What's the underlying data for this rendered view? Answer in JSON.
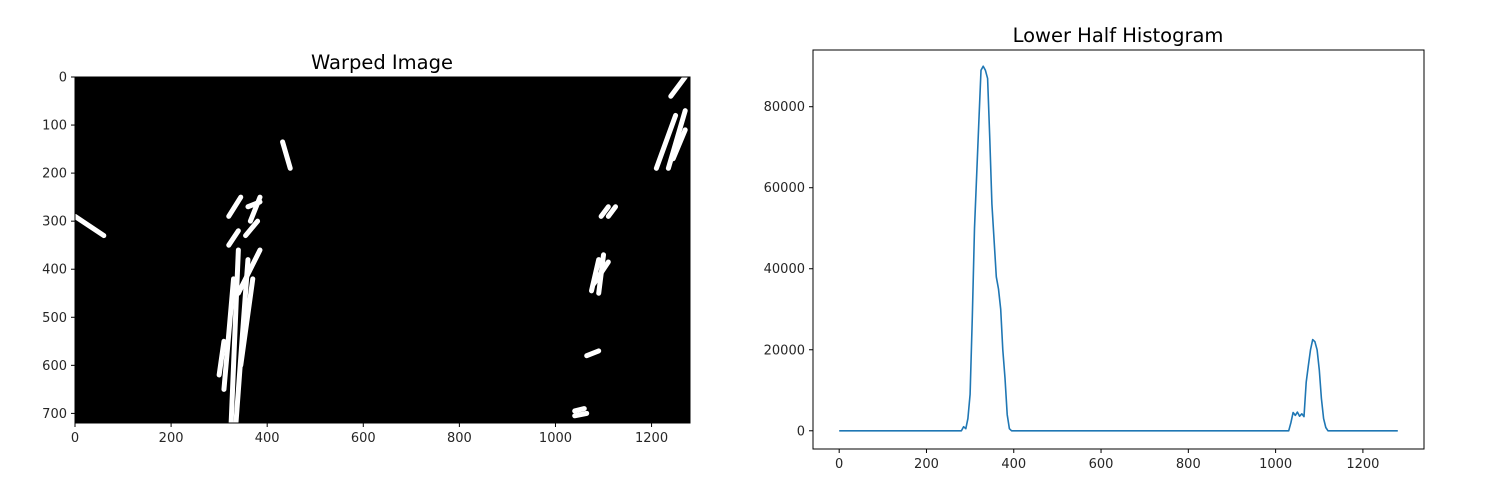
{
  "chart_data": [
    {
      "type": "image",
      "title": "Warped Image",
      "xlim": [
        0,
        1280
      ],
      "ylim": [
        720,
        0
      ],
      "xticks": [
        0,
        200,
        400,
        600,
        800,
        1000,
        1200
      ],
      "yticks": [
        0,
        100,
        200,
        300,
        400,
        500,
        600,
        700
      ],
      "colormap": "binary (white lane pixels on black)",
      "bright_regions": [
        {
          "kind": "line",
          "from": [
            0,
            290
          ],
          "to": [
            60,
            330
          ]
        },
        {
          "kind": "line",
          "from": [
            432,
            135
          ],
          "to": [
            448,
            190
          ]
        },
        {
          "kind": "line",
          "from": [
            1210,
            190
          ],
          "to": [
            1250,
            80
          ]
        },
        {
          "kind": "line",
          "from": [
            1235,
            190
          ],
          "to": [
            1270,
            70
          ]
        },
        {
          "kind": "line",
          "from": [
            1245,
            170
          ],
          "to": [
            1270,
            110
          ]
        },
        {
          "kind": "line",
          "from": [
            1240,
            40
          ],
          "to": [
            1270,
            0
          ]
        },
        {
          "kind": "line",
          "from": [
            1095,
            290
          ],
          "to": [
            1110,
            270
          ]
        },
        {
          "kind": "line",
          "from": [
            1110,
            290
          ],
          "to": [
            1125,
            270
          ]
        },
        {
          "kind": "line",
          "from": [
            325,
            720
          ],
          "to": [
            340,
            360
          ]
        },
        {
          "kind": "line",
          "from": [
            335,
            720
          ],
          "to": [
            360,
            380
          ]
        },
        {
          "kind": "line",
          "from": [
            310,
            650
          ],
          "to": [
            330,
            420
          ]
        },
        {
          "kind": "line",
          "from": [
            345,
            600
          ],
          "to": [
            370,
            420
          ]
        },
        {
          "kind": "line",
          "from": [
            340,
            450
          ],
          "to": [
            385,
            360
          ]
        },
        {
          "kind": "line",
          "from": [
            300,
            620
          ],
          "to": [
            310,
            550
          ]
        },
        {
          "kind": "line",
          "from": [
            320,
            350
          ],
          "to": [
            340,
            320
          ]
        },
        {
          "kind": "line",
          "from": [
            320,
            290
          ],
          "to": [
            345,
            250
          ]
        },
        {
          "kind": "line",
          "from": [
            355,
            330
          ],
          "to": [
            380,
            300
          ]
        },
        {
          "kind": "line",
          "from": [
            365,
            300
          ],
          "to": [
            385,
            250
          ]
        },
        {
          "kind": "line",
          "from": [
            360,
            270
          ],
          "to": [
            385,
            260
          ]
        },
        {
          "kind": "line",
          "from": [
            1090,
            450
          ],
          "to": [
            1100,
            370
          ]
        },
        {
          "kind": "line",
          "from": [
            1075,
            445
          ],
          "to": [
            1090,
            380
          ]
        },
        {
          "kind": "line",
          "from": [
            1080,
            430
          ],
          "to": [
            1110,
            385
          ]
        },
        {
          "kind": "line",
          "from": [
            1065,
            580
          ],
          "to": [
            1090,
            570
          ]
        },
        {
          "kind": "line",
          "from": [
            1040,
            705
          ],
          "to": [
            1065,
            700
          ]
        },
        {
          "kind": "line",
          "from": [
            1040,
            695
          ],
          "to": [
            1060,
            690
          ]
        }
      ]
    },
    {
      "type": "line",
      "title": "Lower Half Histogram",
      "xlim": [
        -60,
        1340
      ],
      "ylim": [
        -4500,
        94000
      ],
      "xticks": [
        0,
        200,
        400,
        600,
        800,
        1000,
        1200
      ],
      "yticks": [
        0,
        20000,
        40000,
        60000,
        80000
      ],
      "line_color": "#1f77b4",
      "x": [
        0,
        280,
        285,
        290,
        295,
        300,
        305,
        310,
        320,
        325,
        330,
        335,
        340,
        345,
        350,
        360,
        365,
        370,
        375,
        380,
        385,
        390,
        395,
        400,
        1030,
        1035,
        1040,
        1045,
        1050,
        1055,
        1060,
        1065,
        1070,
        1075,
        1080,
        1085,
        1090,
        1095,
        1100,
        1105,
        1110,
        1115,
        1120,
        1125,
        1130,
        1280
      ],
      "y": [
        0,
        0,
        1000,
        500,
        3000,
        9000,
        28000,
        50000,
        76000,
        89000,
        90000,
        89000,
        87000,
        72000,
        56000,
        38000,
        35000,
        30000,
        20000,
        13000,
        4000,
        500,
        0,
        0,
        0,
        2000,
        4500,
        3800,
        4600,
        3600,
        4200,
        3500,
        12000,
        16000,
        20000,
        22500,
        22000,
        20000,
        15000,
        8000,
        3000,
        800,
        0,
        0,
        0,
        0
      ]
    }
  ]
}
